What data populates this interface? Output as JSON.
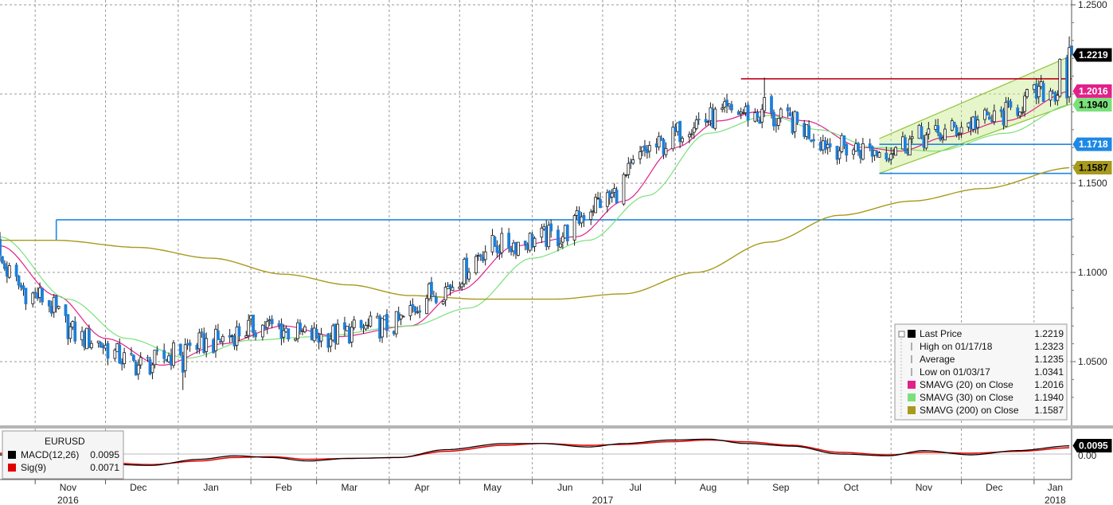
{
  "chart_data": [
    {
      "type": "candlestick",
      "instrument": "EURUSD",
      "y_axis": {
        "ticks": [
          "1.2500",
          "1.1500",
          "1.1000",
          "1.0500"
        ],
        "ylim": [
          1.02,
          1.25
        ],
        "position": "right",
        "grid": true
      },
      "x_axis": {
        "months": [
          "Nov",
          "Dec",
          "Jan",
          "Feb",
          "Mar",
          "Apr",
          "May",
          "Jun",
          "Jul",
          "Aug",
          "Sep",
          "Oct",
          "Nov",
          "Dec",
          "Jan"
        ],
        "years": [
          "2016",
          "2017",
          "2018"
        ],
        "range": [
          "2016-10-17",
          "2018-01-17"
        ]
      },
      "series": [
        {
          "name": "SMAVG (20) on Close",
          "color": "#e0218a",
          "x": [
            "2016-10-17",
            "2016-11-10",
            "2016-12-01",
            "2016-12-25",
            "2017-01-20",
            "2017-02-15",
            "2017-03-10",
            "2017-04-10",
            "2017-05-01",
            "2017-05-25",
            "2017-06-20",
            "2017-07-10",
            "2017-08-01",
            "2017-08-20",
            "2017-09-05",
            "2017-09-25",
            "2017-10-20",
            "2017-11-05",
            "2017-11-25",
            "2017-12-20",
            "2018-01-17"
          ],
          "values": [
            1.115,
            1.087,
            1.063,
            1.048,
            1.06,
            1.07,
            1.064,
            1.07,
            1.09,
            1.115,
            1.12,
            1.14,
            1.17,
            1.185,
            1.19,
            1.185,
            1.17,
            1.168,
            1.176,
            1.185,
            1.2016
          ]
        },
        {
          "name": "SMAVG (30) on Close",
          "color": "#7be07b",
          "x": [
            "2016-10-17",
            "2016-11-15",
            "2016-12-10",
            "2017-01-05",
            "2017-02-01",
            "2017-03-01",
            "2017-04-10",
            "2017-05-05",
            "2017-06-01",
            "2017-06-25",
            "2017-07-20",
            "2017-08-15",
            "2017-09-10",
            "2017-10-01",
            "2017-10-25",
            "2017-11-20",
            "2017-12-20",
            "2018-01-17"
          ],
          "values": [
            1.12,
            1.085,
            1.063,
            1.052,
            1.062,
            1.064,
            1.07,
            1.08,
            1.108,
            1.118,
            1.143,
            1.178,
            1.188,
            1.18,
            1.17,
            1.168,
            1.178,
            1.194
          ]
        },
        {
          "name": "SMAVG (200) on Close",
          "color": "#a89a1c",
          "x": [
            "2016-10-17",
            "2016-11-10",
            "2016-12-15",
            "2017-01-15",
            "2017-02-15",
            "2017-03-15",
            "2017-04-10",
            "2017-05-10",
            "2017-06-10",
            "2017-07-10",
            "2017-08-10",
            "2017-09-10",
            "2017-10-10",
            "2017-11-10",
            "2017-12-10",
            "2018-01-17"
          ],
          "values": [
            1.118,
            1.118,
            1.114,
            1.108,
            1.099,
            1.093,
            1.087,
            1.085,
            1.085,
            1.088,
            1.1,
            1.117,
            1.132,
            1.14,
            1.147,
            1.1587
          ]
        }
      ],
      "levels": [
        {
          "label": "1.2219",
          "value": 1.2219,
          "bg": "#000000",
          "fg": "#ffffff"
        },
        {
          "label": "1.2016",
          "value": 1.2016,
          "bg": "#e0218a",
          "fg": "#ffffff"
        },
        {
          "label": "1.1940",
          "value": 1.194,
          "bg": "#7be07b",
          "fg": "#000000"
        },
        {
          "label": "1.1718",
          "value": 1.1718,
          "bg": "#1e88e5",
          "fg": "#ffffff"
        },
        {
          "label": "1.1587",
          "value": 1.1587,
          "bg": "#a89a1c",
          "fg": "#000000"
        }
      ],
      "trend_lines": [
        {
          "from": "2016-11-10",
          "to": "2018-01-17",
          "value": 1.1295,
          "color": "#1e88e5"
        },
        {
          "from": "2017-08-29",
          "to": "2018-01-17",
          "value": 1.2085,
          "color": "#c0001a"
        },
        {
          "from": "2017-10-27",
          "to": "2018-01-17",
          "value": 1.1718,
          "color": "#1e88e5"
        },
        {
          "from": "2017-10-27",
          "to": "2018-01-17",
          "value": 1.1555,
          "color": "#1e88e5"
        }
      ],
      "channel": {
        "start": "2017-10-27",
        "end": "2018-01-17",
        "upper": [
          1.175,
          1.2215
        ],
        "lower": [
          1.1555,
          1.1945
        ],
        "color": "#c8e88a"
      },
      "legend": {
        "position": "bottom-right",
        "items": [
          {
            "label": "Last Price",
            "value": "1.2219",
            "color": "#000000"
          },
          {
            "label": "High on 01/17/18",
            "value": "1.2323"
          },
          {
            "label": "Average",
            "value": "1.1235"
          },
          {
            "label": "Low on 01/03/17",
            "value": "1.0341"
          },
          {
            "label": "SMAVG (20) on Close",
            "value": "1.2016",
            "color": "#e0218a"
          },
          {
            "label": "SMAVG (30) on Close",
            "value": "1.1940",
            "color": "#7be07b"
          },
          {
            "label": "SMAVG (200) on Close",
            "value": "1.1587",
            "color": "#a89a1c"
          }
        ]
      }
    },
    {
      "type": "line",
      "instrument": "EURUSD",
      "y_axis": {
        "ticks": [
          "0.00"
        ],
        "ylim": [
          -0.018,
          0.018
        ],
        "position": "right"
      },
      "series": [
        {
          "name": "MACD(12,26)",
          "color": "#000000",
          "x": [
            "2016-10-17",
            "2016-11-05",
            "2016-11-25",
            "2016-12-20",
            "2017-01-10",
            "2017-01-25",
            "2017-02-10",
            "2017-02-25",
            "2017-03-15",
            "2017-04-05",
            "2017-04-25",
            "2017-05-20",
            "2017-06-05",
            "2017-06-25",
            "2017-07-10",
            "2017-07-30",
            "2017-08-15",
            "2017-08-31",
            "2017-09-20",
            "2017-10-10",
            "2017-10-31",
            "2017-11-15",
            "2017-12-05",
            "2017-12-25",
            "2018-01-17"
          ],
          "values": [
            -0.001,
            -0.006,
            -0.011,
            -0.013,
            -0.006,
            -0.002,
            -0.004,
            -0.008,
            -0.005,
            -0.004,
            0.005,
            0.012,
            0.012,
            0.008,
            0.012,
            0.016,
            0.017,
            0.012,
            0.009,
            0.0,
            -0.002,
            0.004,
            -0.001,
            0.004,
            0.0095
          ]
        },
        {
          "name": "Sig(9)",
          "color": "#e00000",
          "x": [
            "2016-10-17",
            "2016-11-05",
            "2016-11-25",
            "2016-12-20",
            "2017-01-10",
            "2017-01-25",
            "2017-02-10",
            "2017-02-25",
            "2017-03-15",
            "2017-04-05",
            "2017-04-25",
            "2017-05-20",
            "2017-06-05",
            "2017-06-25",
            "2017-07-10",
            "2017-07-30",
            "2017-08-15",
            "2017-08-31",
            "2017-09-20",
            "2017-10-10",
            "2017-10-31",
            "2017-11-15",
            "2017-12-05",
            "2017-12-25",
            "2018-01-17"
          ],
          "values": [
            0.001,
            -0.004,
            -0.009,
            -0.012,
            -0.008,
            -0.004,
            -0.003,
            -0.006,
            -0.005,
            -0.004,
            0.003,
            0.01,
            0.012,
            0.01,
            0.011,
            0.014,
            0.016,
            0.014,
            0.01,
            0.002,
            -0.001,
            0.002,
            0.001,
            0.003,
            0.0071
          ]
        }
      ],
      "levels": [
        {
          "label": "0.0095",
          "value": 0.0095,
          "bg": "#000000",
          "fg": "#ffffff"
        },
        {
          "label": "0.00",
          "value": 0.0,
          "bg": "#ffffff",
          "fg": "#000000"
        }
      ],
      "legend": {
        "position": "top-left",
        "title": "EURUSD",
        "items": [
          {
            "label": "MACD(12,26)",
            "value": "0.0095",
            "color": "#000000"
          },
          {
            "label": "Sig(9)",
            "value": "0.0071",
            "color": "#e00000"
          }
        ]
      }
    }
  ]
}
